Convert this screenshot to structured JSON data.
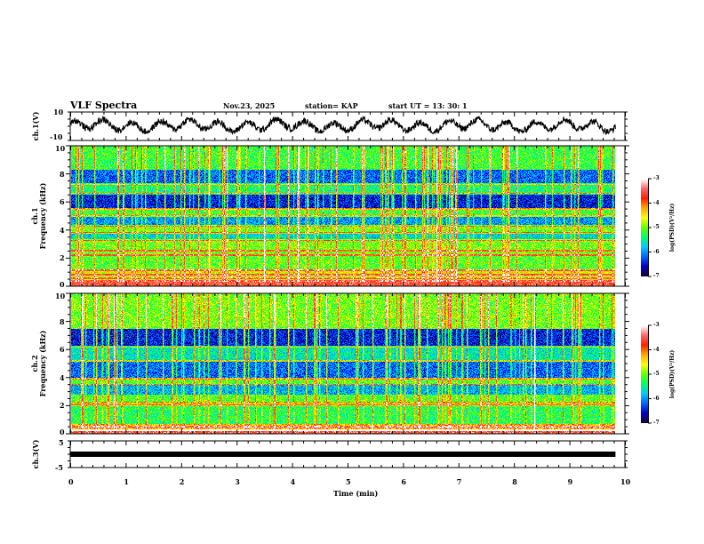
{
  "header": {
    "title": "VLF Spectra",
    "date": "Nov.23, 2025",
    "station": "station= KAP",
    "start_ut": "start  UT =   13: 30: 1"
  },
  "chart_data": [
    {
      "type": "line",
      "name": "ch1-waveform",
      "ylabel": "ch.1(V)",
      "ylim": [
        -10,
        10
      ],
      "ytick_labels": [
        "10",
        "-10"
      ],
      "xlim": [
        0,
        10
      ],
      "data_end_min": 9.83,
      "description": "noisy waveform oscillating roughly between -5 and +8 V with quasi-periodic variations (~0.5 min period)",
      "approx_mean": 0.5
    },
    {
      "type": "heatmap",
      "name": "ch1-spectrogram",
      "ylabel": "ch.1\nFrequency (kHz)",
      "ylabel_line1": "ch.1",
      "ylabel_line2": "Frequency  (kHz)",
      "ylim": [
        0,
        10
      ],
      "ytick_labels": [
        "0",
        "2",
        "4",
        "6",
        "8",
        "10"
      ],
      "xlim": [
        0,
        10
      ],
      "data_end_min": 9.83,
      "colorbar": {
        "label": "log(PSD)(V²/Hz)",
        "range": [
          -7,
          -3
        ],
        "tick_labels": [
          "-3",
          "-4",
          "-5",
          "-6",
          "-7"
        ],
        "colormap": [
          "#1a0033",
          "#0000cc",
          "#0066ff",
          "#00ccff",
          "#00ff66",
          "#66ff00",
          "#ffff00",
          "#ffaa00",
          "#ff2200",
          "#ff6666",
          "#ffffff"
        ]
      },
      "features": [
        {
          "band_khz": [
            0,
            0.3
          ],
          "level": -3.6
        },
        {
          "band_khz": [
            0.3,
            1.2
          ],
          "level": -4.6
        },
        {
          "band_khz": [
            1.2,
            2.2
          ],
          "level": -5.1
        },
        {
          "band_khz": [
            2.2,
            3.3
          ],
          "level": -5.0
        },
        {
          "band_khz": [
            3.3,
            3.8
          ],
          "level": -5.7
        },
        {
          "band_khz": [
            3.8,
            4.3
          ],
          "level": -5.0
        },
        {
          "band_khz": [
            4.3,
            5.0
          ],
          "level": -6.0
        },
        {
          "band_khz": [
            5.0,
            5.6
          ],
          "level": -5.2
        },
        {
          "band_khz": [
            5.6,
            6.6
          ],
          "level": -6.5
        },
        {
          "band_khz": [
            6.6,
            7.3
          ],
          "level": -5.4
        },
        {
          "band_khz": [
            7.3,
            8.3
          ],
          "level": -6.2
        },
        {
          "band_khz": [
            8.3,
            10
          ],
          "level": -5.2
        }
      ],
      "lines_khz": [
        0.35,
        0.55,
        0.8,
        1.1,
        2.2,
        2.5,
        3.3,
        3.8,
        4.3,
        5.0,
        5.5,
        6.6,
        7.3
      ],
      "impulsive_vertical_streaks": true
    },
    {
      "type": "heatmap",
      "name": "ch2-spectrogram",
      "ylabel_line1": "ch.2",
      "ylabel_line2": "Frequency  (kHz)",
      "ylim": [
        0,
        10
      ],
      "ytick_labels": [
        "0",
        "2",
        "4",
        "6",
        "8",
        "10"
      ],
      "xlim": [
        0,
        10
      ],
      "data_end_min": 9.83,
      "colorbar": {
        "label": "log(PSD)(V²/Hz)",
        "range": [
          -7,
          -3
        ],
        "tick_labels": [
          "-3",
          "-4",
          "-5",
          "-6",
          "-7"
        ]
      },
      "features": [
        {
          "band_khz": [
            0,
            0.3
          ],
          "level": -3.5
        },
        {
          "band_khz": [
            0.3,
            0.7
          ],
          "level": -4.3
        },
        {
          "band_khz": [
            0.7,
            2.0
          ],
          "level": -5.3
        },
        {
          "band_khz": [
            2.0,
            2.8
          ],
          "level": -5.1
        },
        {
          "band_khz": [
            2.8,
            3.5
          ],
          "level": -5.9
        },
        {
          "band_khz": [
            3.5,
            4.0
          ],
          "level": -5.1
        },
        {
          "band_khz": [
            4.0,
            5.2
          ],
          "level": -6.2
        },
        {
          "band_khz": [
            5.2,
            6.2
          ],
          "level": -5.6
        },
        {
          "band_khz": [
            6.2,
            7.5
          ],
          "level": -6.5
        },
        {
          "band_khz": [
            7.5,
            10
          ],
          "level": -5.0
        }
      ],
      "lines_khz": [
        0.25,
        0.45,
        2.0,
        2.2,
        3.5,
        3.9,
        5.2,
        6.2
      ],
      "impulsive_vertical_streaks": true
    },
    {
      "type": "line",
      "name": "ch3-waveform",
      "ylabel": "ch.3(V)",
      "ylim": [
        -5,
        5
      ],
      "ytick_labels": [
        "5",
        "-5"
      ],
      "xlim": [
        0,
        10
      ],
      "data_end_min": 9.83,
      "approx_value": 0,
      "xlabel": "Time  (min)",
      "xtick_labels": [
        "0",
        "1",
        "2",
        "3",
        "4",
        "5",
        "6",
        "7",
        "8",
        "9",
        "10"
      ]
    }
  ]
}
